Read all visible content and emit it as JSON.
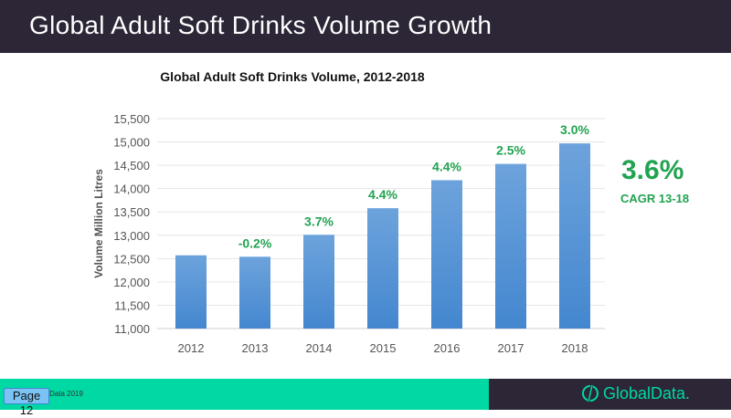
{
  "header": {
    "title": "Global Adult Soft Drinks Volume Growth"
  },
  "chart_data": {
    "type": "bar",
    "title": "Global Adult Soft Drinks Volume, 2012-2018",
    "xlabel": "",
    "ylabel": "Volume Million Litres",
    "ylim": [
      11000,
      15500
    ],
    "yticks": [
      11000,
      11500,
      12000,
      12500,
      13000,
      13500,
      14000,
      14500,
      15000,
      15500
    ],
    "ytick_labels": [
      "11,000",
      "11,500",
      "12,000",
      "12,500",
      "13,000",
      "13,500",
      "14,000",
      "14,500",
      "15,000",
      "15,500"
    ],
    "categories": [
      "2012",
      "2013",
      "2014",
      "2015",
      "2016",
      "2017",
      "2018"
    ],
    "values": [
      12570,
      12540,
      13010,
      13580,
      14180,
      14530,
      14970
    ],
    "growth_labels": [
      "",
      "-0.2%",
      "3.7%",
      "4.4%",
      "4.4%",
      "2.5%",
      "3.0%"
    ],
    "grid": true,
    "bar_color": "#5b97d6",
    "label_color": "#21a350"
  },
  "cagr": {
    "value": "3.6%",
    "label": "CAGR 13-18"
  },
  "footer": {
    "page": "Page 12",
    "copyright": "Data 2019",
    "logo": "GlobalData."
  }
}
